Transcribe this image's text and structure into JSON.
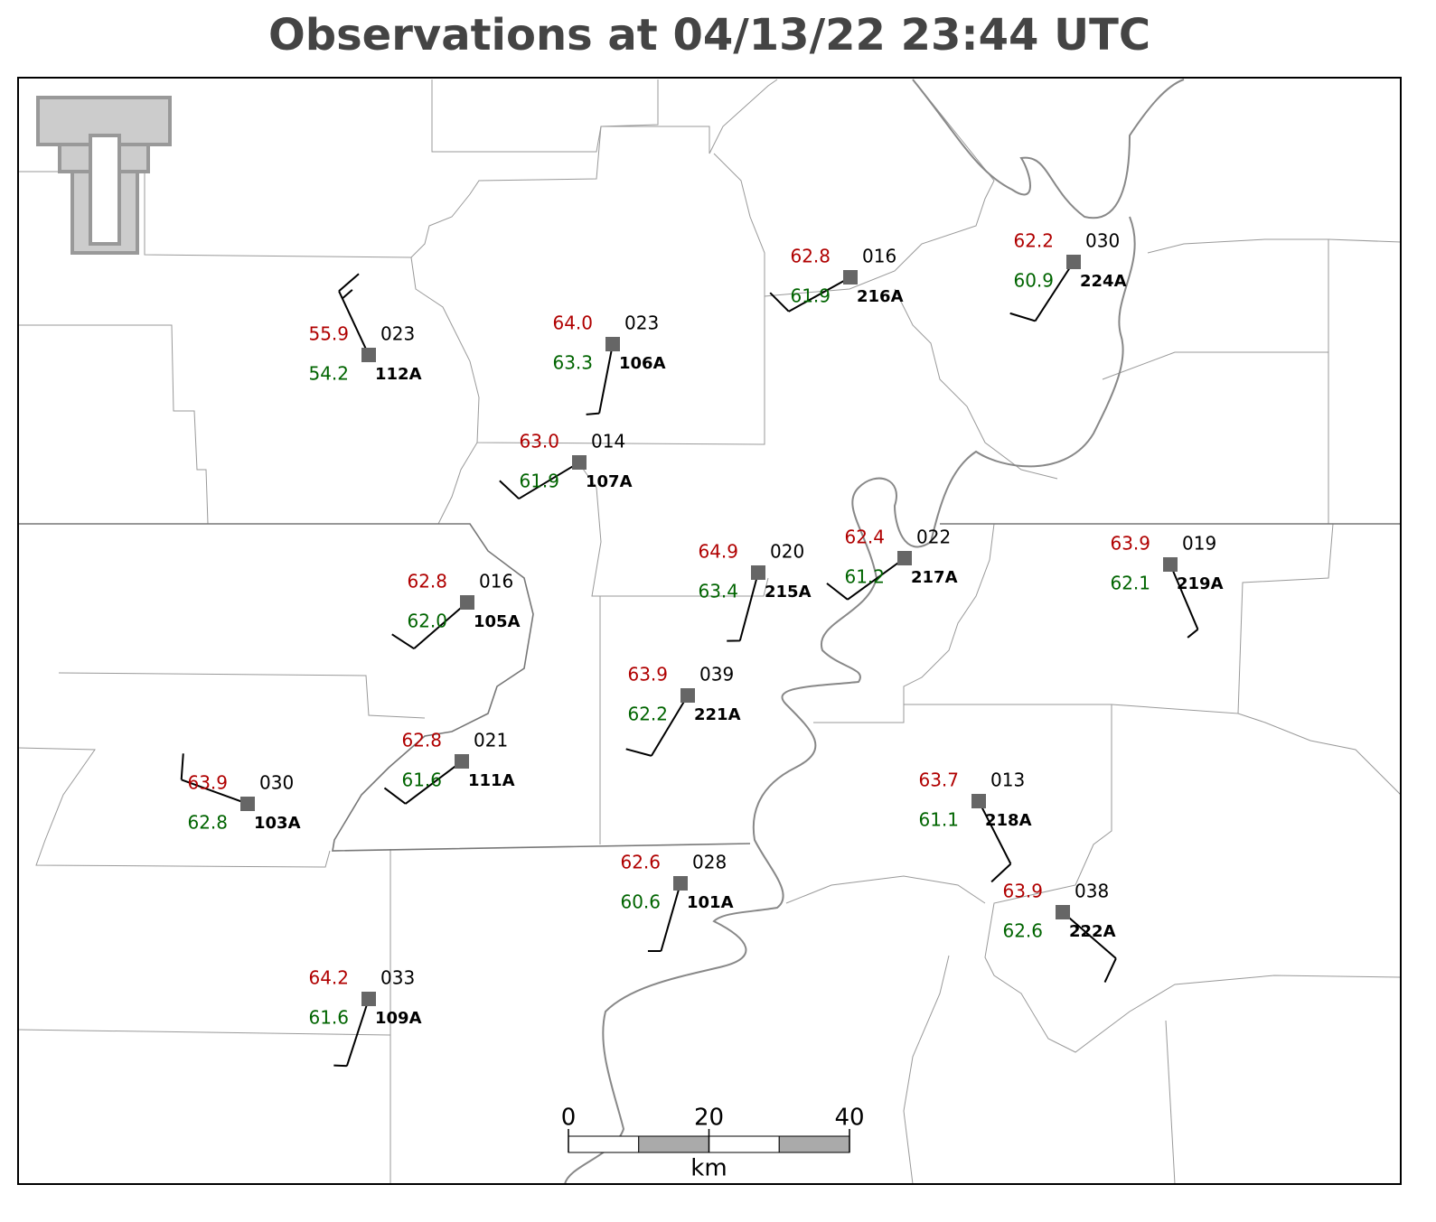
{
  "title": "Observations at 04/13/22 23:44 UTC",
  "stations": [
    {
      "id": "112A",
      "temp": "55.9",
      "dew": "54.2",
      "pres": "023",
      "wind_dir": 335,
      "wind_kt": 15
    },
    {
      "id": "106A",
      "temp": "64.0",
      "dew": "63.3",
      "pres": "023",
      "wind_dir": 191,
      "wind_kt": 5
    },
    {
      "id": "107A",
      "temp": "63.0",
      "dew": "61.9",
      "pres": "014",
      "wind_dir": 239,
      "wind_kt": 10
    },
    {
      "id": "216A",
      "temp": "62.8",
      "dew": "61.9",
      "pres": "016",
      "wind_dir": 241,
      "wind_kt": 10
    },
    {
      "id": "224A",
      "temp": "62.2",
      "dew": "60.9",
      "pres": "030",
      "wind_dir": 213,
      "wind_kt": 10
    },
    {
      "id": "105A",
      "temp": "62.8",
      "dew": "62.0",
      "pres": "016",
      "wind_dir": 229,
      "wind_kt": 10
    },
    {
      "id": "215A",
      "temp": "64.9",
      "dew": "63.4",
      "pres": "020",
      "wind_dir": 195,
      "wind_kt": 5
    },
    {
      "id": "217A",
      "temp": "62.4",
      "dew": "61.2",
      "pres": "022",
      "wind_dir": 234,
      "wind_kt": 10
    },
    {
      "id": "219A",
      "temp": "63.9",
      "dew": "62.1",
      "pres": "019",
      "wind_dir": 157,
      "wind_kt": 5
    },
    {
      "id": "221A",
      "temp": "63.9",
      "dew": "62.2",
      "pres": "039",
      "wind_dir": 211,
      "wind_kt": 10
    },
    {
      "id": "111A",
      "temp": "62.8",
      "dew": "61.6",
      "pres": "021",
      "wind_dir": 233,
      "wind_kt": 10
    },
    {
      "id": "103A",
      "temp": "63.9",
      "dew": "62.8",
      "pres": "030",
      "wind_dir": 290,
      "wind_kt": 10
    },
    {
      "id": "218A",
      "temp": "63.7",
      "dew": "61.1",
      "pres": "013",
      "wind_dir": 153,
      "wind_kt": 10
    },
    {
      "id": "101A",
      "temp": "62.6",
      "dew": "60.6",
      "pres": "028",
      "wind_dir": 196,
      "wind_kt": 5
    },
    {
      "id": "222A",
      "temp": "63.9",
      "dew": "62.6",
      "pres": "038",
      "wind_dir": 131,
      "wind_kt": 10
    },
    {
      "id": "109A",
      "temp": "64.2",
      "dew": "61.6",
      "pres": "033",
      "wind_dir": 198,
      "wind_kt": 5
    }
  ],
  "scale_bar": {
    "ticks": [
      0,
      20,
      40
    ],
    "unit": "km"
  }
}
